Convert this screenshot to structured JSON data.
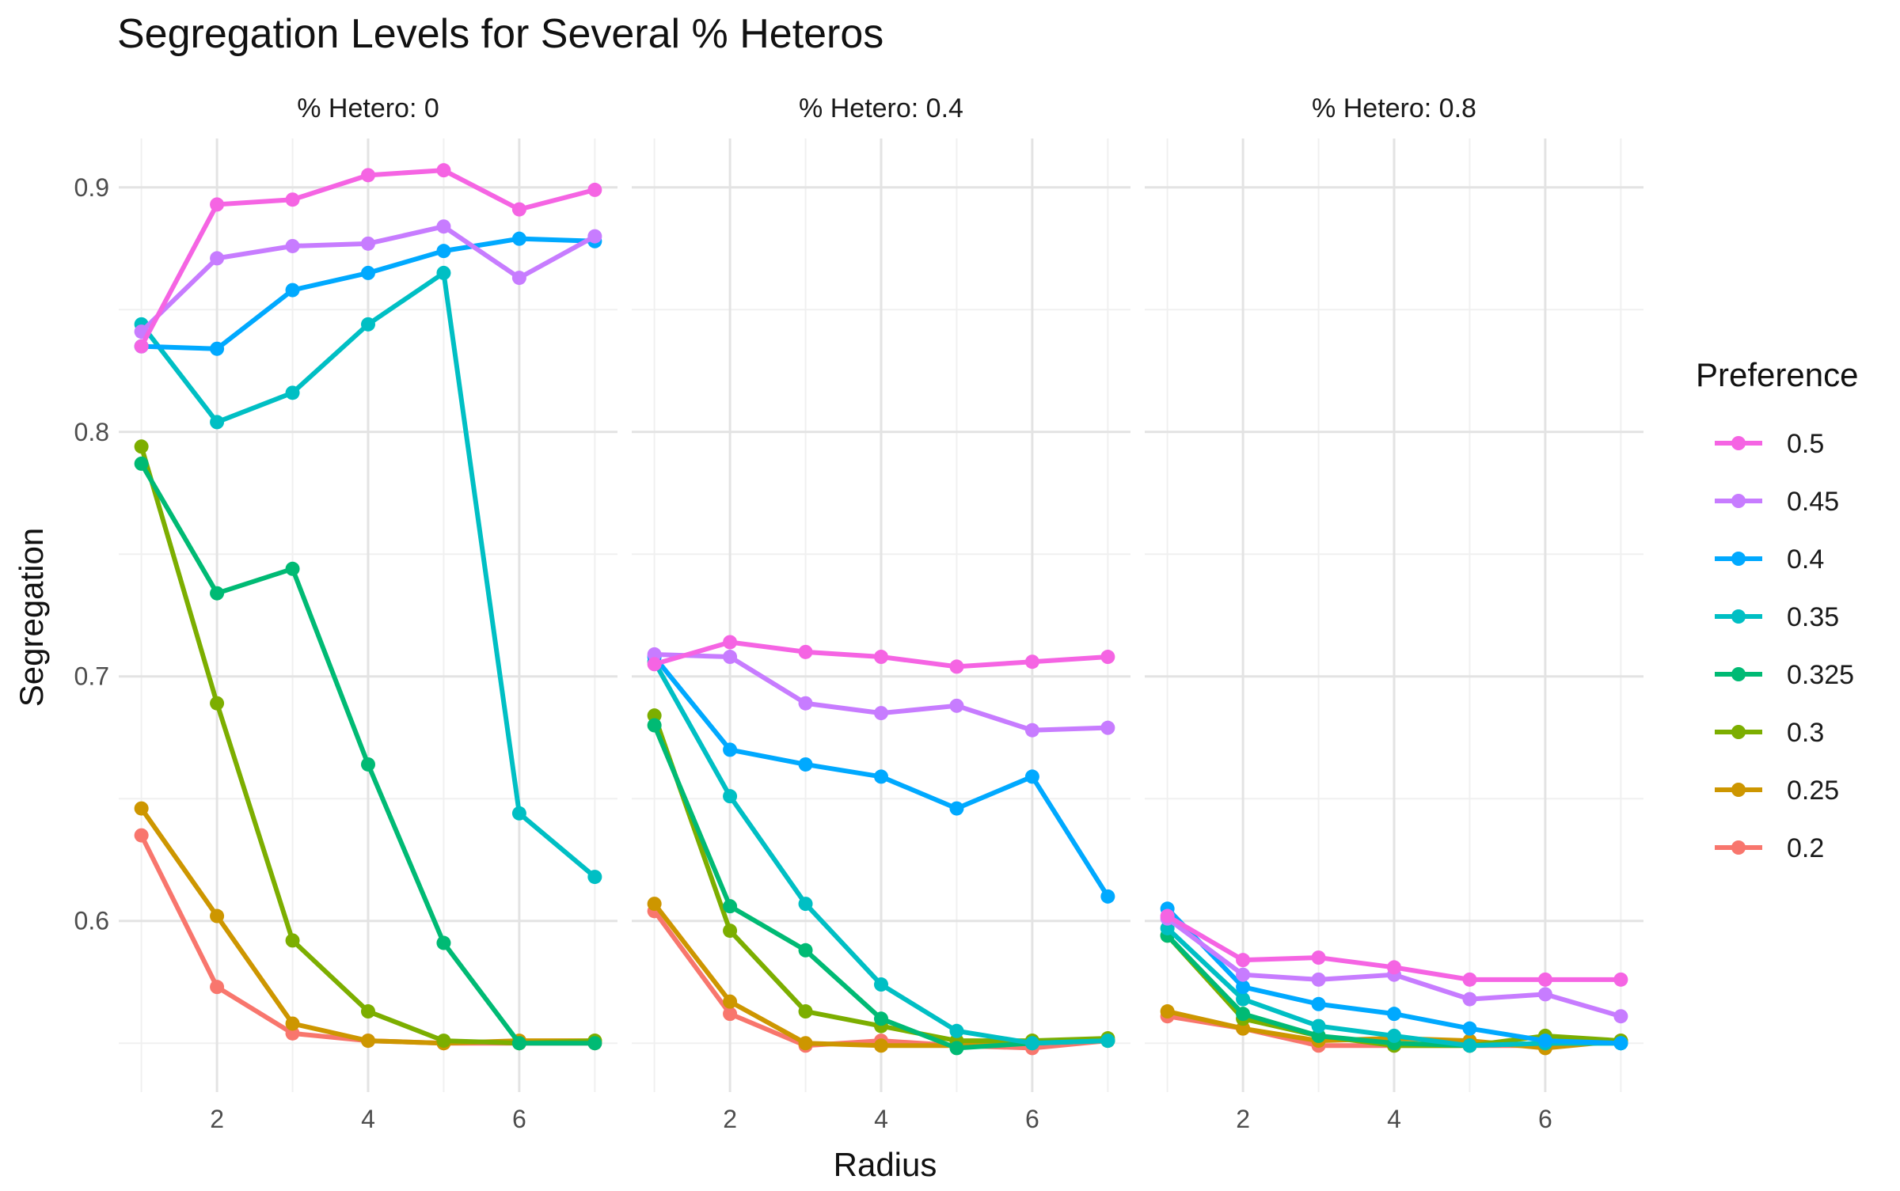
{
  "chart_data": {
    "type": "line",
    "title": "Segregation Levels for Several % Heteros",
    "xlabel": "Radius",
    "ylabel": "Segregation",
    "x": [
      1,
      2,
      3,
      4,
      5,
      6,
      7
    ],
    "xlim": [
      0.7,
      7.3
    ],
    "ylim": [
      0.53,
      0.92
    ],
    "x_ticks": [
      2,
      4,
      6
    ],
    "y_ticks": [
      0.6,
      0.7,
      0.8,
      0.9
    ],
    "x_tick_labels": [
      "2",
      "4",
      "6"
    ],
    "y_tick_labels": [
      "0.6",
      "0.7",
      "0.8",
      "0.9"
    ],
    "grid": true,
    "legend": {
      "title": "Preference",
      "position": "right"
    },
    "colors": {
      "0.5": "#F564E3",
      "0.45": "#C77CFF",
      "0.4": "#00A9FF",
      "0.35": "#00BFC4",
      "0.325": "#00BA74",
      "0.3": "#7CAE00",
      "0.25": "#CD9600",
      "0.2": "#F8766D"
    },
    "series_names": [
      "0.5",
      "0.45",
      "0.4",
      "0.35",
      "0.325",
      "0.3",
      "0.25",
      "0.2"
    ],
    "draw_order": [
      "0.2",
      "0.25",
      "0.3",
      "0.325",
      "0.35",
      "0.4",
      "0.45",
      "0.5"
    ],
    "panels": [
      {
        "label": "% Hetero:  0",
        "series": [
          {
            "name": "0.5",
            "values": [
              0.835,
              0.893,
              0.895,
              0.905,
              0.907,
              0.891,
              0.899
            ]
          },
          {
            "name": "0.45",
            "values": [
              0.841,
              0.871,
              0.876,
              0.877,
              0.884,
              0.863,
              0.88
            ]
          },
          {
            "name": "0.4",
            "values": [
              0.835,
              0.834,
              0.858,
              0.865,
              0.874,
              0.879,
              0.878
            ]
          },
          {
            "name": "0.35",
            "values": [
              0.844,
              0.804,
              0.816,
              0.844,
              0.865,
              0.644,
              0.618
            ]
          },
          {
            "name": "0.325",
            "values": [
              0.787,
              0.734,
              0.744,
              0.664,
              0.591,
              0.55,
              0.55
            ]
          },
          {
            "name": "0.3",
            "values": [
              0.794,
              0.689,
              0.592,
              0.563,
              0.551,
              0.55,
              0.551
            ]
          },
          {
            "name": "0.25",
            "values": [
              0.646,
              0.602,
              0.558,
              0.551,
              0.55,
              0.551,
              0.551
            ]
          },
          {
            "name": "0.2",
            "values": [
              0.635,
              0.573,
              0.554,
              0.551,
              0.55,
              0.55,
              0.55
            ]
          }
        ]
      },
      {
        "label": "% Hetero:  0.4",
        "series": [
          {
            "name": "0.5",
            "values": [
              0.705,
              0.714,
              0.71,
              0.708,
              0.704,
              0.706,
              0.708
            ]
          },
          {
            "name": "0.45",
            "values": [
              0.709,
              0.708,
              0.689,
              0.685,
              0.688,
              0.678,
              0.679
            ]
          },
          {
            "name": "0.4",
            "values": [
              0.708,
              0.67,
              0.664,
              0.659,
              0.646,
              0.659,
              0.61
            ]
          },
          {
            "name": "0.35",
            "values": [
              0.706,
              0.651,
              0.607,
              0.574,
              0.555,
              0.55,
              0.551
            ]
          },
          {
            "name": "0.325",
            "values": [
              0.68,
              0.606,
              0.588,
              0.56,
              0.548,
              0.55,
              0.551
            ]
          },
          {
            "name": "0.3",
            "values": [
              0.684,
              0.596,
              0.563,
              0.557,
              0.551,
              0.551,
              0.552
            ]
          },
          {
            "name": "0.25",
            "values": [
              0.607,
              0.567,
              0.55,
              0.549,
              0.549,
              0.551,
              0.551
            ]
          },
          {
            "name": "0.2",
            "values": [
              0.604,
              0.562,
              0.549,
              0.551,
              0.549,
              0.548,
              0.551
            ]
          }
        ]
      },
      {
        "label": "% Hetero:  0.8",
        "series": [
          {
            "name": "0.5",
            "values": [
              0.602,
              0.584,
              0.585,
              0.581,
              0.576,
              0.576,
              0.576
            ]
          },
          {
            "name": "0.45",
            "values": [
              0.601,
              0.578,
              0.576,
              0.578,
              0.568,
              0.57,
              0.561
            ]
          },
          {
            "name": "0.4",
            "values": [
              0.605,
              0.573,
              0.566,
              0.562,
              0.556,
              0.551,
              0.55
            ]
          },
          {
            "name": "0.35",
            "values": [
              0.597,
              0.568,
              0.557,
              0.553,
              0.549,
              0.55,
              0.55
            ]
          },
          {
            "name": "0.325",
            "values": [
              0.594,
              0.562,
              0.553,
              0.55,
              0.549,
              0.55,
              0.55
            ]
          },
          {
            "name": "0.3",
            "values": [
              0.594,
              0.56,
              0.553,
              0.549,
              0.549,
              0.553,
              0.551
            ]
          },
          {
            "name": "0.25",
            "values": [
              0.563,
              0.556,
              0.551,
              0.552,
              0.551,
              0.548,
              0.551
            ]
          },
          {
            "name": "0.2",
            "values": [
              0.561,
              0.556,
              0.549,
              0.549,
              0.549,
              0.549,
              0.551
            ]
          }
        ]
      }
    ]
  }
}
